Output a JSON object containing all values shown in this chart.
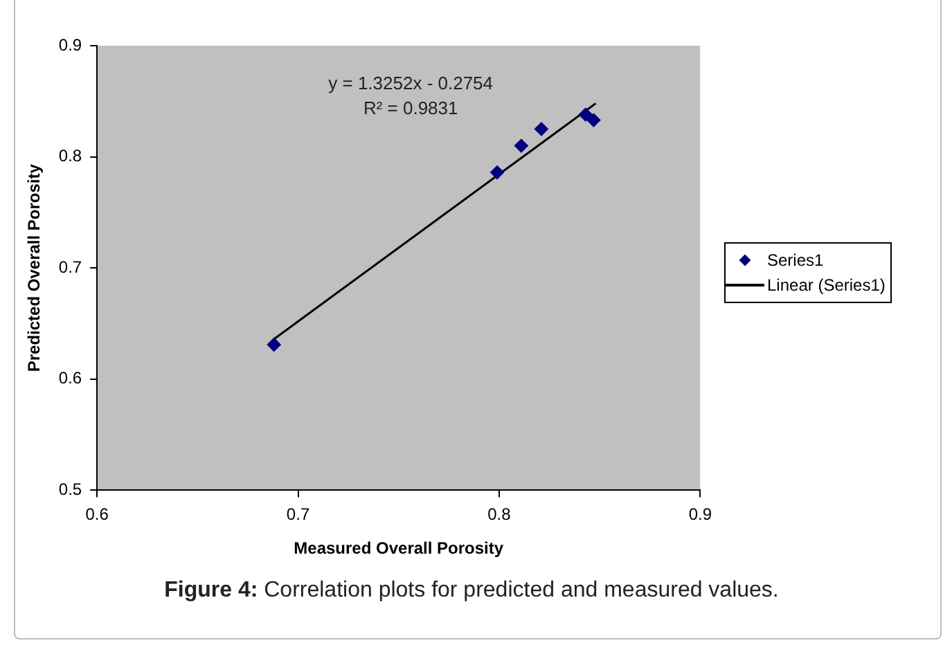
{
  "chart_data": {
    "type": "scatter",
    "xlabel": "Measured Overall Porosity",
    "ylabel": "Predicted Overall Porosity",
    "xlim": [
      0.6,
      0.9
    ],
    "xticks": [
      0.6,
      0.7,
      0.8,
      0.9
    ],
    "ylim": [
      0.5,
      0.9
    ],
    "yticks": [
      0.5,
      0.6,
      0.7,
      0.8,
      0.9
    ],
    "grid": false,
    "legend": "right",
    "marker": "diamond",
    "series": [
      {
        "name": "Series1",
        "color": "#000080",
        "x": [
          0.688,
          0.799,
          0.811,
          0.821,
          0.843,
          0.847
        ],
        "values": [
          0.631,
          0.786,
          0.81,
          0.825,
          0.838,
          0.833
        ]
      },
      {
        "name": "Linear (Series1)",
        "type": "line",
        "color": "#000000",
        "marker": "none",
        "x": [
          0.688,
          0.848
        ],
        "values": [
          0.636,
          0.848
        ]
      }
    ],
    "annotations": [
      "y = 1.3252x - 0.2754",
      "R² = 0.9831",
      "Figure 4:",
      "Correlation plots for predicted and measured values."
    ]
  }
}
